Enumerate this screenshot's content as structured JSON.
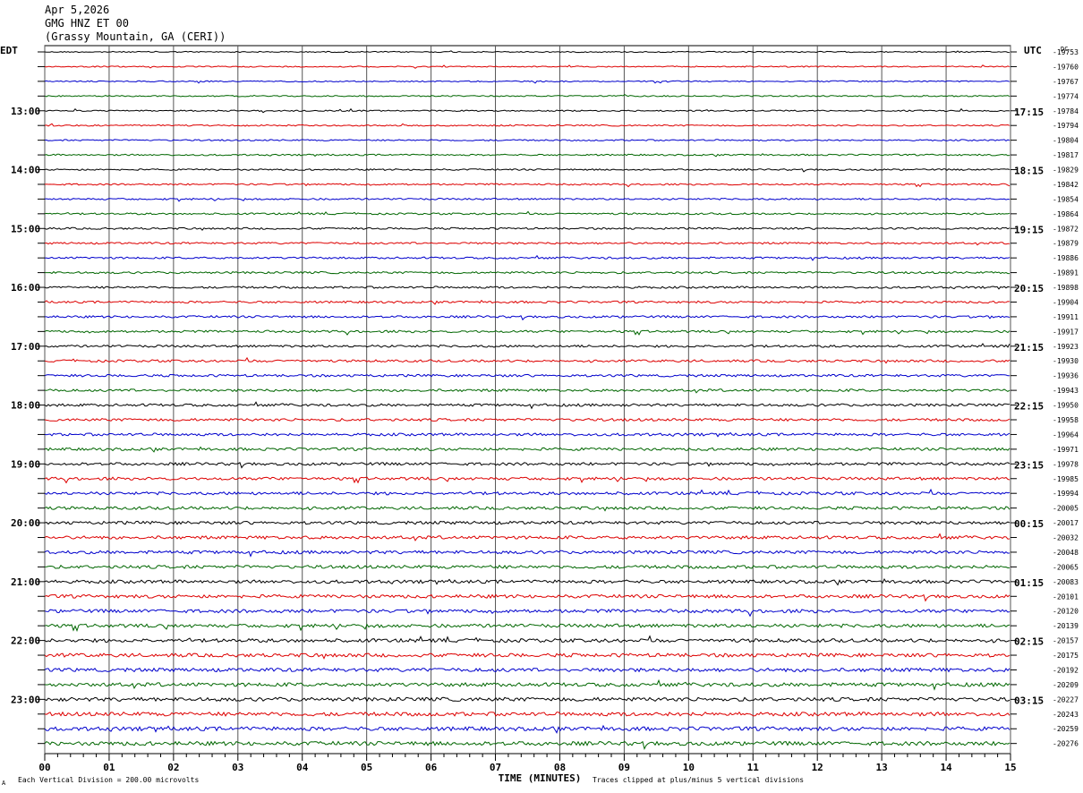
{
  "header": {
    "date": "Apr 5,2026",
    "channel": "GMG HNZ ET 00",
    "station": "(Grassy Mountain, GA (CERI))"
  },
  "left_axis_title": "EDT",
  "right_axis_title": "UTC",
  "dc_label": "DC",
  "footer": {
    "scale": "Each Vertical Division =  200.00 microvolts",
    "clip": "Traces clipped at plus/minus 5 vertical divisions",
    "mark": "A"
  },
  "chart_data": {
    "type": "line",
    "xlabel": "TIME (MINUTES)",
    "xlim": [
      0,
      15
    ],
    "x_ticks": [
      "00",
      "01",
      "02",
      "03",
      "04",
      "05",
      "06",
      "07",
      "08",
      "09",
      "10",
      "11",
      "12",
      "13",
      "14",
      "15"
    ],
    "colors": [
      "#000000",
      "#dd0000",
      "#0000cc",
      "#006600"
    ],
    "left_time_labels": [
      "13:00",
      "14:00",
      "15:00",
      "16:00",
      "17:00",
      "18:00",
      "19:00",
      "20:00",
      "21:00",
      "22:00",
      "23:00"
    ],
    "right_time_labels": [
      "17:15",
      "18:15",
      "19:15",
      "20:15",
      "21:15",
      "22:15",
      "23:15",
      "00:15",
      "01:15",
      "02:15",
      "03:15"
    ],
    "dc_offsets": [
      "-19753",
      "-19760",
      "-19767",
      "-19774",
      "-19784",
      "-19794",
      "-19804",
      "-19817",
      "-19829",
      "-19842",
      "-19854",
      "-19864",
      "-19872",
      "-19879",
      "-19886",
      "-19891",
      "-19898",
      "-19904",
      "-19911",
      "-19917",
      "-19923",
      "-19930",
      "-19936",
      "-19943",
      "-19950",
      "-19958",
      "-19964",
      "-19971",
      "-19978",
      "-19985",
      "-19994",
      "-20005",
      "-20017",
      "-20032",
      "-20048",
      "-20065",
      "-20083",
      "-20101",
      "-20120",
      "-20139",
      "-20157",
      "-20175",
      "-20192",
      "-20209",
      "-20227",
      "-20243",
      "-20259",
      "-20276"
    ]
  }
}
